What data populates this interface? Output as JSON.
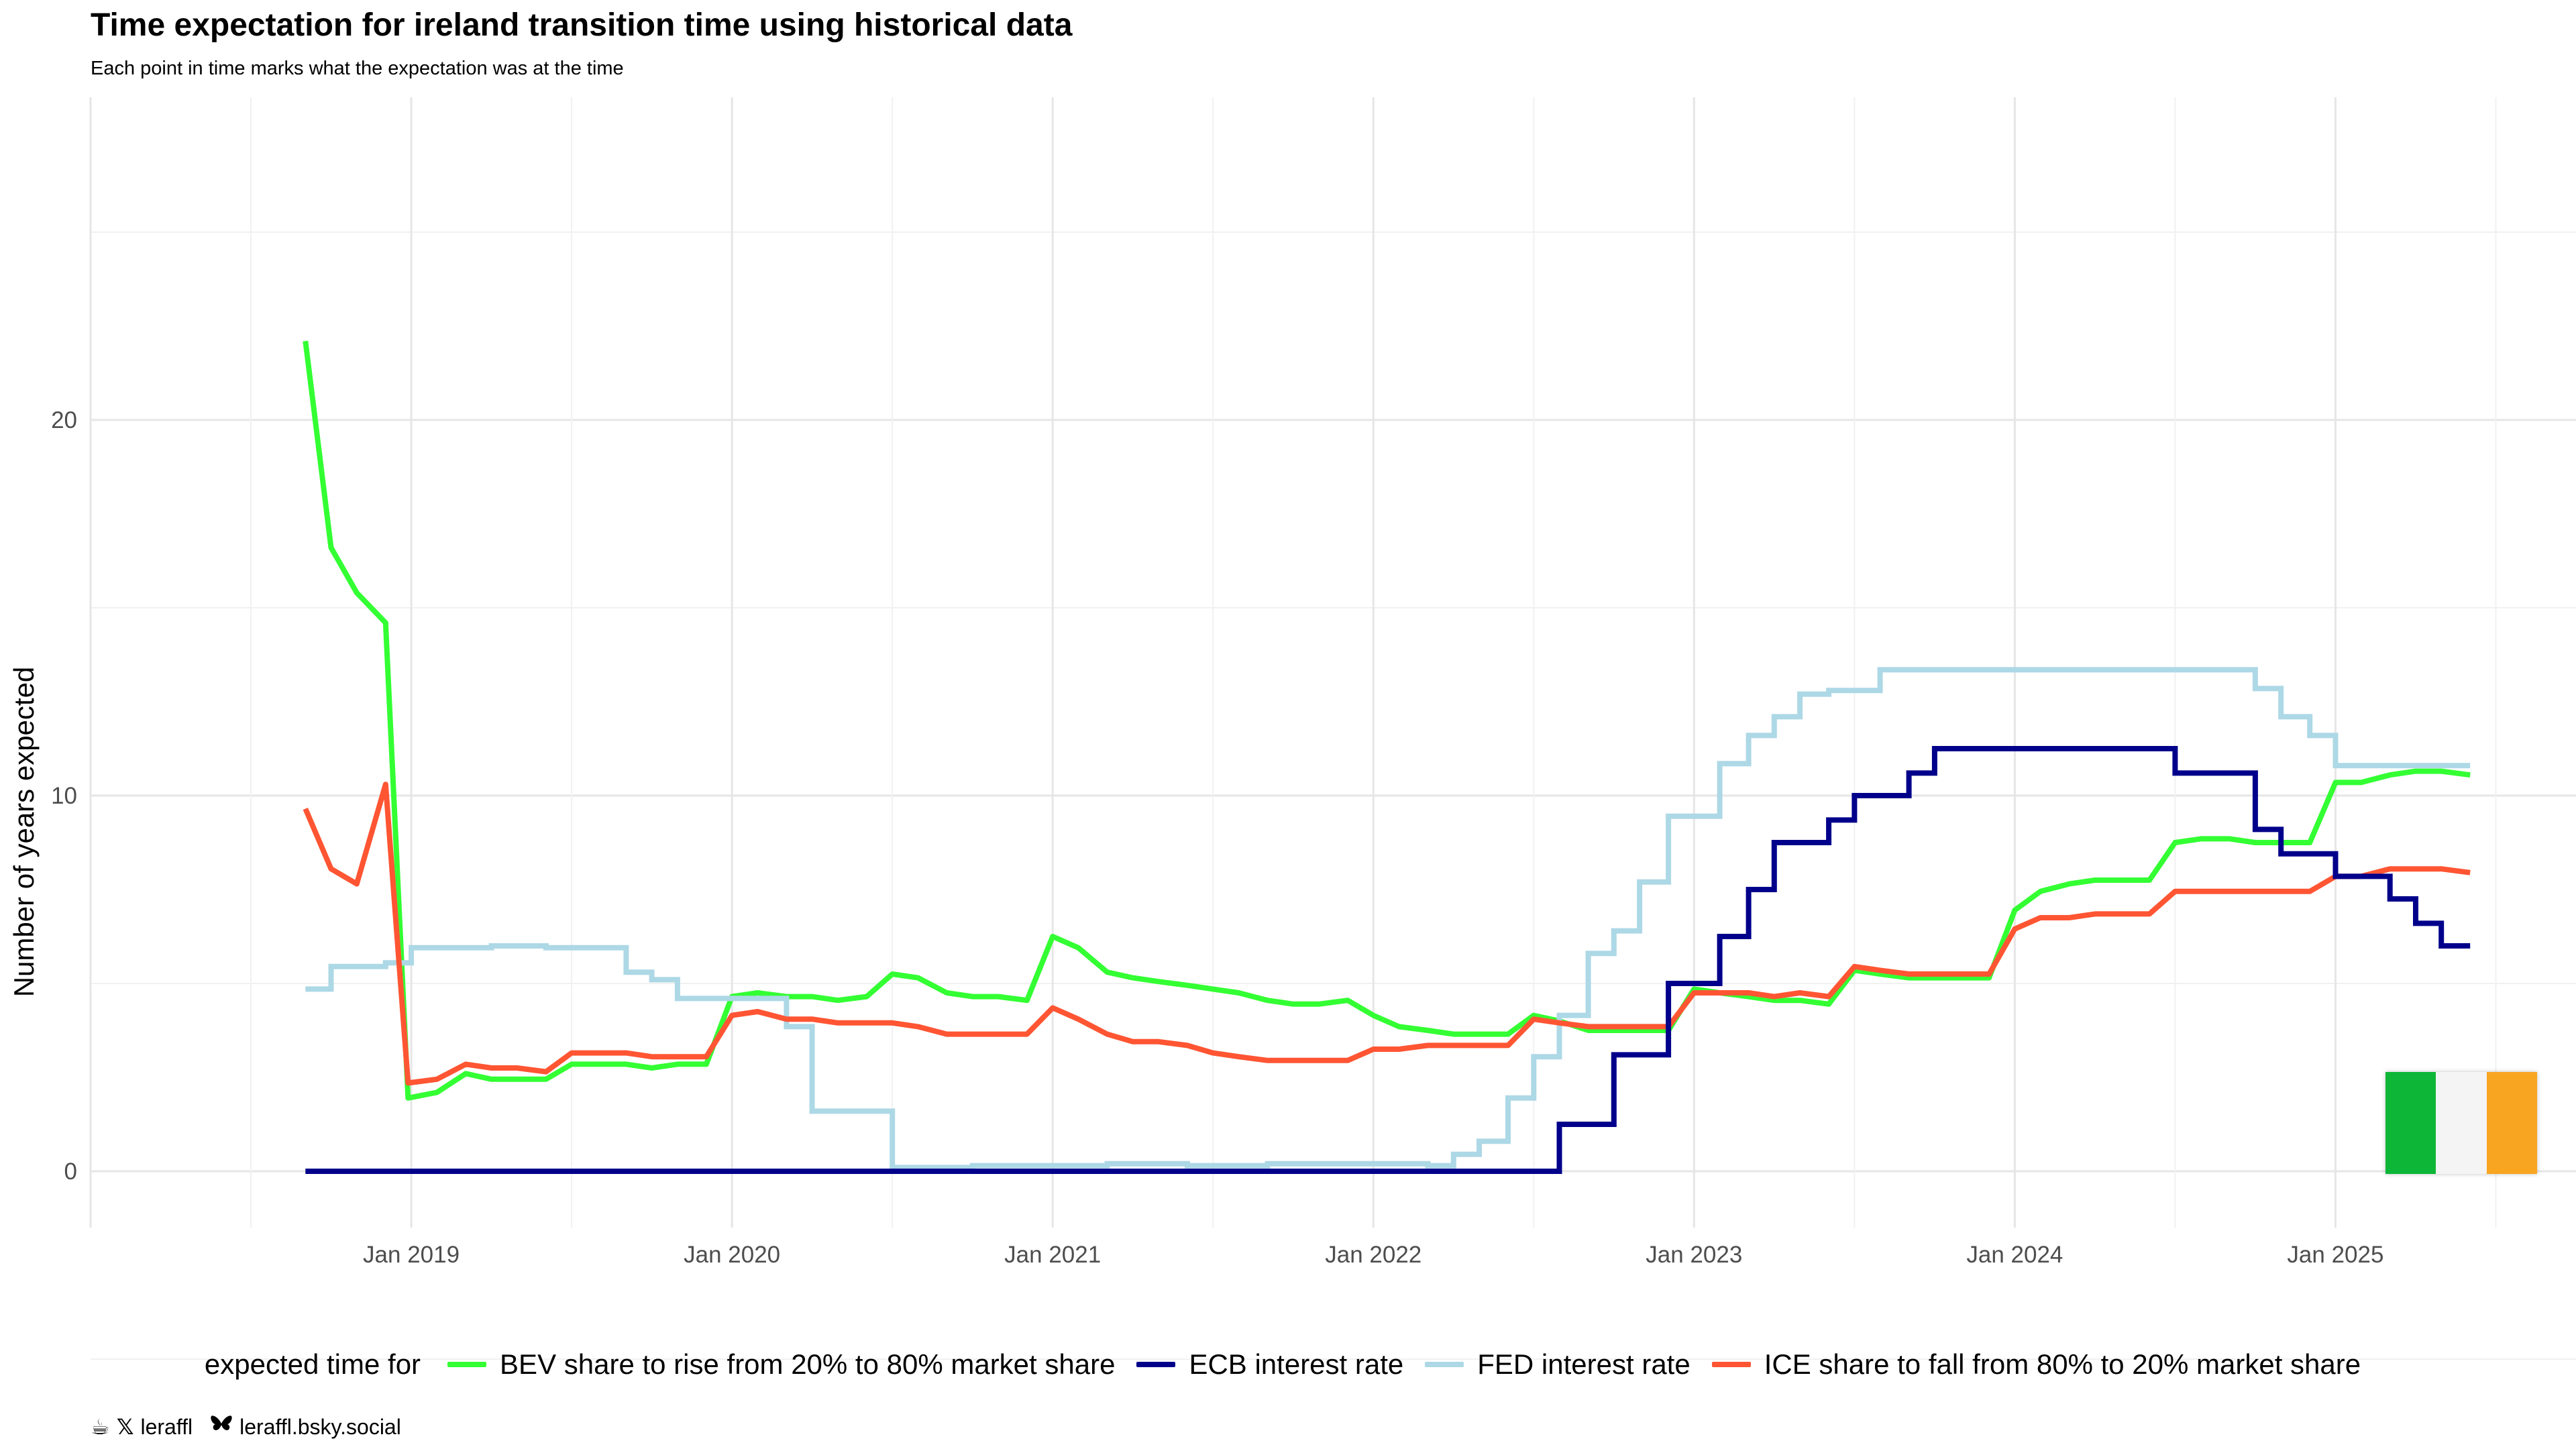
{
  "title": "Time expectation for ireland transition time using historical data",
  "subtitle": "Each point in time marks what the expectation was at the time",
  "credits": {
    "handle": "leraffl",
    "bluesky": "leraffl.bsky.social",
    "icons": [
      "coffee-icon",
      "x-icon",
      "butterfly-icon"
    ]
  },
  "flag": {
    "name": "ireland-flag",
    "colors": [
      "#0DB637",
      "#F4F4F4",
      "#F8A521"
    ]
  },
  "chart_data": {
    "type": "line",
    "title": "Time expectation for ireland transition time using historical data",
    "subtitle": "Each point in time marks what the expectation was at the time",
    "xlabel": "",
    "ylabel": "Number of years expected",
    "xlim": [
      2018.0,
      2025.75
    ],
    "ylim": [
      -1.5,
      28.5
    ],
    "x_ticks": [
      2019,
      2020,
      2021,
      2022,
      2023,
      2024,
      2025
    ],
    "x_tick_labels": [
      "Jan 2019",
      "Jan 2020",
      "Jan 2021",
      "Jan 2022",
      "Jan 2023",
      "Jan 2024",
      "Jan 2025"
    ],
    "y_ticks": [
      0,
      10,
      20
    ],
    "y_tick_labels": [
      "0",
      "10",
      "20"
    ],
    "grid": true,
    "legend": {
      "title": "expected time for",
      "position": "bottom"
    },
    "series": [
      {
        "name": "BEV share to rise from 20% to 80% market share",
        "color": "#33FF33",
        "x": [
          2018.67,
          2018.75,
          2018.83,
          2018.92,
          2018.99,
          2019.08,
          2019.17,
          2019.25,
          2019.33,
          2019.42,
          2019.5,
          2019.58,
          2019.67,
          2019.75,
          2019.83,
          2019.92,
          2020.0,
          2020.08,
          2020.17,
          2020.25,
          2020.33,
          2020.42,
          2020.5,
          2020.58,
          2020.67,
          2020.75,
          2020.83,
          2020.92,
          2021.0,
          2021.08,
          2021.17,
          2021.25,
          2021.33,
          2021.42,
          2021.5,
          2021.58,
          2021.67,
          2021.75,
          2021.83,
          2021.92,
          2022.0,
          2022.08,
          2022.17,
          2022.25,
          2022.33,
          2022.42,
          2022.5,
          2022.58,
          2022.67,
          2022.75,
          2022.83,
          2022.92,
          2023.0,
          2023.08,
          2023.17,
          2023.25,
          2023.33,
          2023.42,
          2023.5,
          2023.58,
          2023.67,
          2023.75,
          2023.83,
          2023.92,
          2024.0,
          2024.08,
          2024.17,
          2024.25,
          2024.33,
          2024.42,
          2024.5,
          2024.58,
          2024.67,
          2024.75,
          2024.83,
          2024.92,
          2025.0,
          2025.08,
          2025.17,
          2025.25,
          2025.33,
          2025.42
        ],
        "y": [
          22.1,
          16.6,
          15.4,
          14.6,
          1.95,
          2.1,
          2.6,
          2.45,
          2.45,
          2.45,
          2.85,
          2.85,
          2.85,
          2.75,
          2.85,
          2.85,
          4.65,
          4.75,
          4.65,
          4.65,
          4.55,
          4.65,
          5.25,
          5.15,
          4.75,
          4.65,
          4.65,
          4.55,
          6.25,
          5.95,
          5.3,
          5.15,
          5.05,
          4.95,
          4.85,
          4.75,
          4.55,
          4.45,
          4.45,
          4.55,
          4.15,
          3.85,
          3.75,
          3.65,
          3.65,
          3.65,
          4.15,
          4.0,
          3.75,
          3.75,
          3.75,
          3.75,
          4.85,
          4.75,
          4.65,
          4.55,
          4.55,
          4.45,
          5.35,
          5.25,
          5.15,
          5.15,
          5.15,
          5.15,
          6.95,
          7.45,
          7.65,
          7.75,
          7.75,
          7.75,
          8.75,
          8.85,
          8.85,
          8.75,
          8.75,
          8.75,
          10.35,
          10.35,
          10.55,
          10.65,
          10.65,
          10.55
        ]
      },
      {
        "name": "ECB interest rate",
        "color": "#00008B",
        "step": true,
        "x": [
          2018.67,
          2022.58,
          2022.75,
          2022.92,
          2023.08,
          2023.17,
          2023.25,
          2023.42,
          2023.5,
          2023.67,
          2023.75,
          2024.5,
          2024.75,
          2024.83,
          2025.0,
          2025.17,
          2025.25,
          2025.33,
          2025.42
        ],
        "y": [
          0,
          1.25,
          3.1,
          5.0,
          6.25,
          7.5,
          8.75,
          9.35,
          10.0,
          10.6,
          11.25,
          10.6,
          9.1,
          8.45,
          7.85,
          7.25,
          6.6,
          6.0,
          6.0
        ]
      },
      {
        "name": "FED interest rate",
        "color": "#ADD8E6",
        "step": true,
        "x": [
          2018.67,
          2018.75,
          2018.92,
          2019.0,
          2019.17,
          2019.25,
          2019.33,
          2019.42,
          2019.58,
          2019.67,
          2019.75,
          2019.83,
          2020.17,
          2020.25,
          2020.5,
          2020.75,
          2021.17,
          2021.42,
          2021.67,
          2022.17,
          2022.25,
          2022.33,
          2022.42,
          2022.5,
          2022.58,
          2022.67,
          2022.75,
          2022.83,
          2022.92,
          2023.08,
          2023.17,
          2023.25,
          2023.33,
          2023.42,
          2023.58,
          2024.75,
          2024.83,
          2024.92,
          2025.0,
          2025.42
        ],
        "y": [
          4.85,
          5.45,
          5.55,
          5.95,
          5.95,
          6.0,
          6.0,
          5.95,
          5.95,
          5.3,
          5.1,
          4.6,
          3.85,
          1.6,
          0.1,
          0.15,
          0.2,
          0.15,
          0.2,
          0.15,
          0.45,
          0.8,
          1.95,
          3.05,
          4.15,
          5.8,
          6.4,
          7.7,
          9.45,
          10.85,
          11.6,
          12.1,
          12.7,
          12.8,
          13.35,
          12.85,
          12.1,
          11.6,
          10.8,
          10.8
        ]
      },
      {
        "name": "ICE share to fall from 80% to 20% market share",
        "color": "#FF5533",
        "x": [
          2018.67,
          2018.75,
          2018.83,
          2018.92,
          2018.99,
          2019.08,
          2019.17,
          2019.25,
          2019.33,
          2019.42,
          2019.5,
          2019.58,
          2019.67,
          2019.75,
          2019.83,
          2019.92,
          2020.0,
          2020.08,
          2020.17,
          2020.25,
          2020.33,
          2020.42,
          2020.5,
          2020.58,
          2020.67,
          2020.75,
          2020.83,
          2020.92,
          2021.0,
          2021.08,
          2021.17,
          2021.25,
          2021.33,
          2021.42,
          2021.5,
          2021.58,
          2021.67,
          2021.75,
          2021.83,
          2021.92,
          2022.0,
          2022.08,
          2022.17,
          2022.25,
          2022.33,
          2022.42,
          2022.5,
          2022.58,
          2022.67,
          2022.75,
          2022.83,
          2022.92,
          2023.0,
          2023.08,
          2023.17,
          2023.25,
          2023.33,
          2023.42,
          2023.5,
          2023.58,
          2023.67,
          2023.75,
          2023.83,
          2023.92,
          2024.0,
          2024.08,
          2024.17,
          2024.25,
          2024.33,
          2024.42,
          2024.5,
          2024.58,
          2024.67,
          2024.75,
          2024.83,
          2024.92,
          2025.0,
          2025.08,
          2025.17,
          2025.25,
          2025.33,
          2025.42
        ],
        "y": [
          9.65,
          8.05,
          7.65,
          10.3,
          2.35,
          2.45,
          2.85,
          2.75,
          2.75,
          2.65,
          3.15,
          3.15,
          3.15,
          3.05,
          3.05,
          3.05,
          4.15,
          4.25,
          4.05,
          4.05,
          3.95,
          3.95,
          3.95,
          3.85,
          3.65,
          3.65,
          3.65,
          3.65,
          4.35,
          4.05,
          3.65,
          3.45,
          3.45,
          3.35,
          3.15,
          3.05,
          2.95,
          2.95,
          2.95,
          2.95,
          3.25,
          3.25,
          3.35,
          3.35,
          3.35,
          3.35,
          4.05,
          3.95,
          3.85,
          3.85,
          3.85,
          3.85,
          4.75,
          4.75,
          4.75,
          4.65,
          4.75,
          4.65,
          5.45,
          5.35,
          5.25,
          5.25,
          5.25,
          5.25,
          6.45,
          6.75,
          6.75,
          6.85,
          6.85,
          6.85,
          7.45,
          7.45,
          7.45,
          7.45,
          7.45,
          7.45,
          7.85,
          7.85,
          8.05,
          8.05,
          8.05,
          7.95
        ]
      }
    ]
  }
}
